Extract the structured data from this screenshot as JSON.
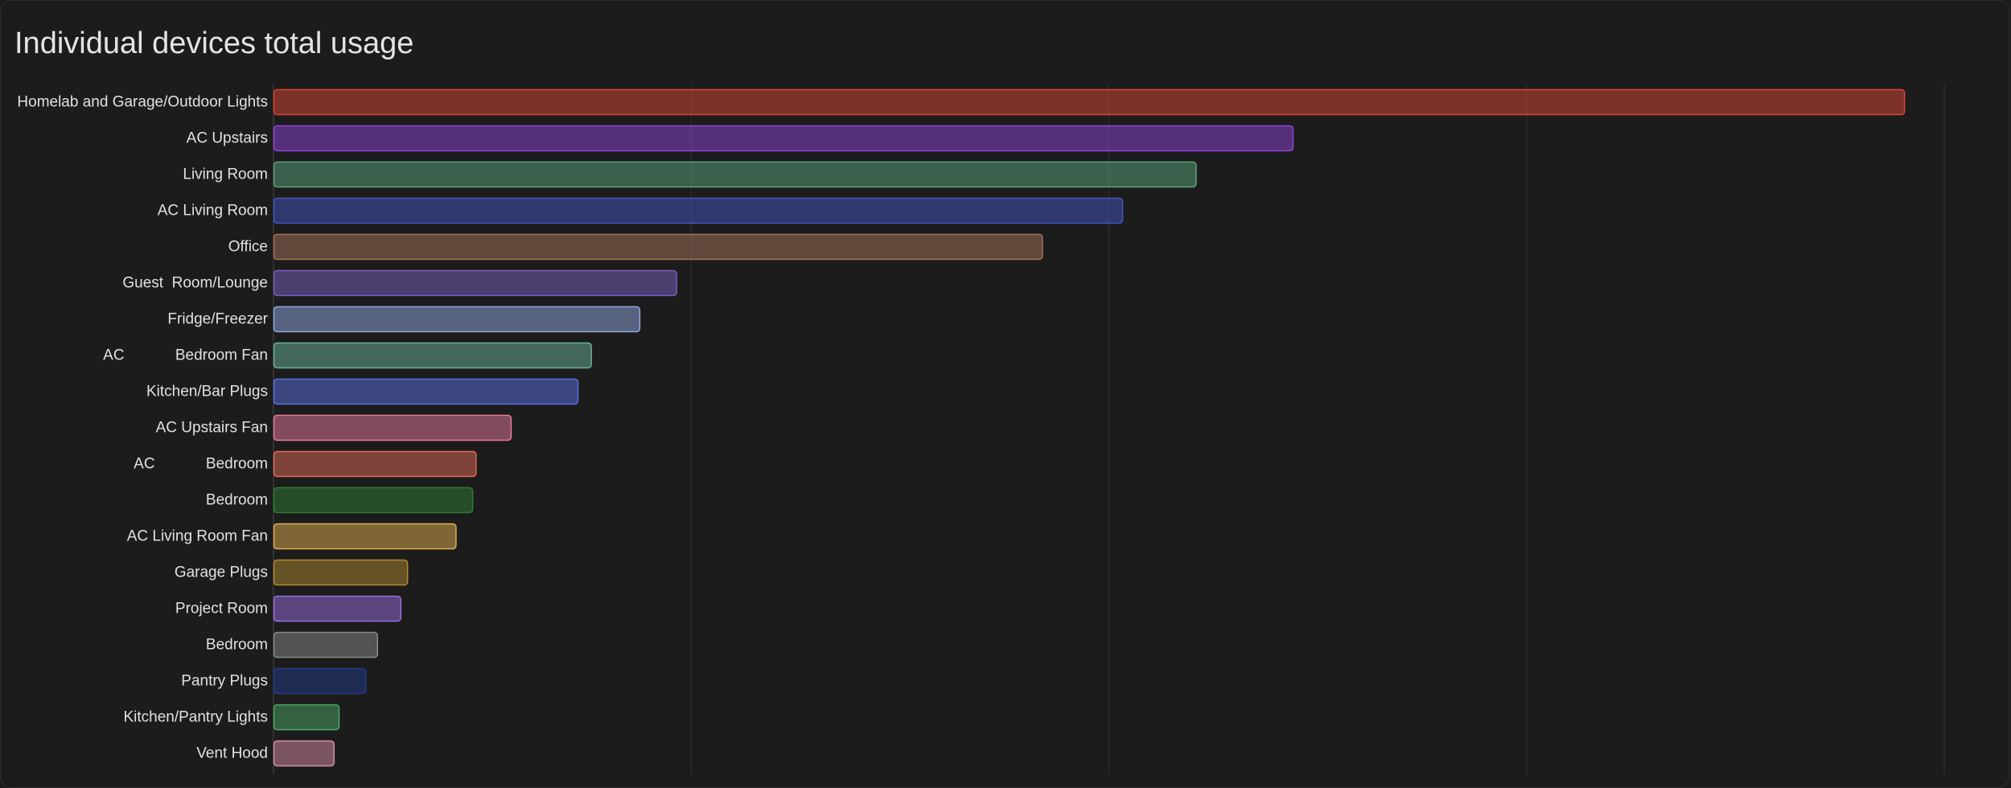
{
  "card": {
    "title": "Individual devices total usage"
  },
  "chart_data": {
    "type": "bar",
    "orientation": "horizontal",
    "title": "Individual devices total usage",
    "xlabel": "",
    "ylabel": "",
    "x_tick_labels_visible": false,
    "xlim": [
      0,
      100
    ],
    "grid": true,
    "legend": "none",
    "categories": [
      "Homelab and Garage/Outdoor Lights",
      "AC Upstairs",
      "Living Room",
      "AC Living Room",
      "Office",
      "Guest  Room/Lounge",
      "Fridge/Freezer",
      "AC            Bedroom Fan",
      "Kitchen/Bar Plugs",
      "AC Upstairs Fan",
      "AC            Bedroom",
      "Bedroom",
      "AC Living Room Fan",
      "Garage Plugs",
      "Project Room",
      "Bedroom",
      "Pantry Plugs",
      "Kitchen/Pantry Lights",
      "Vent Hood"
    ],
    "values": [
      97.6,
      61.0,
      55.2,
      50.8,
      46.0,
      24.1,
      21.9,
      19.0,
      18.2,
      14.2,
      12.1,
      11.9,
      10.9,
      8.0,
      7.6,
      6.2,
      5.5,
      3.9,
      3.6
    ],
    "colors": [
      "#db4437",
      "#8e44d8",
      "#5aa37c",
      "#4255c0",
      "#a5735a",
      "#7b5fc0",
      "#8fa8e0",
      "#6ab19a",
      "#5a6ee0",
      "#e77b9c",
      "#e16b55",
      "#2e7d32",
      "#e0b050",
      "#b08a2e",
      "#9a6ee0",
      "#8a8a8a",
      "#233a8a",
      "#4ca865",
      "#d88ca8"
    ]
  }
}
